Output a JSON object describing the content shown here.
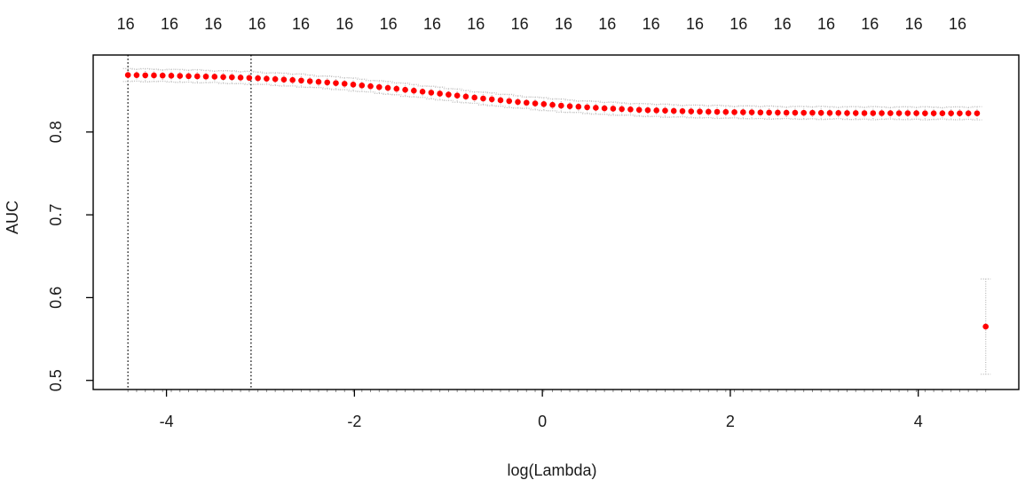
{
  "chart_data": {
    "type": "scatter",
    "title": "",
    "xlabel": "log(Lambda)",
    "ylabel": "AUC",
    "grid": false,
    "legend": "none",
    "x_axis": {
      "range": [
        -4.78,
        5.07
      ],
      "ticks": [
        -4,
        -2,
        0,
        2,
        4
      ]
    },
    "y_axis": {
      "range": [
        0.489,
        0.893
      ],
      "ticks": [
        0.5,
        0.6,
        0.7,
        0.8
      ]
    },
    "top_axis": {
      "x_start": -4.434,
      "x_step": 0.4659,
      "labels": [
        "16",
        "16",
        "16",
        "16",
        "16",
        "16",
        "16",
        "16",
        "16",
        "16",
        "16",
        "16",
        "16",
        "16",
        "16",
        "16",
        "16",
        "16",
        "16",
        "16"
      ]
    },
    "vlines": [
      {
        "name": "lambda-min-line",
        "x": -4.41,
        "style": "dotted"
      },
      {
        "name": "lambda-1se-line",
        "x": -3.1,
        "style": "dotted"
      }
    ],
    "series": {
      "name": "cv-mean-auc",
      "x_start": -4.41,
      "x_step": 0.0922,
      "y": [
        0.8688,
        0.8687,
        0.8685,
        0.8684,
        0.8682,
        0.868,
        0.8678,
        0.8675,
        0.8673,
        0.867,
        0.8668,
        0.8664,
        0.8661,
        0.8657,
        0.8654,
        0.865,
        0.8644,
        0.8639,
        0.8633,
        0.8628,
        0.8622,
        0.8614,
        0.8606,
        0.8599,
        0.8591,
        0.8583,
        0.8573,
        0.8563,
        0.8553,
        0.8543,
        0.8533,
        0.8522,
        0.851,
        0.8499,
        0.8487,
        0.8476,
        0.8464,
        0.8452,
        0.844,
        0.8428,
        0.8416,
        0.8405,
        0.8395,
        0.8384,
        0.8374,
        0.8363,
        0.8354,
        0.8345,
        0.8337,
        0.8328,
        0.8319,
        0.8312,
        0.8306,
        0.8299,
        0.8293,
        0.8286,
        0.8282,
        0.8277,
        0.8273,
        0.8268,
        0.8264,
        0.8261,
        0.8258,
        0.8255,
        0.8252,
        0.8249,
        0.8247,
        0.8245,
        0.8244,
        0.8242,
        0.824,
        0.8239,
        0.8238,
        0.8236,
        0.8235,
        0.8234,
        0.8233,
        0.8233,
        0.8232,
        0.8232,
        0.8231,
        0.823,
        0.823,
        0.8229,
        0.8229,
        0.8228,
        0.8228,
        0.8228,
        0.8227,
        0.8227,
        0.8227,
        0.8227,
        0.8226,
        0.8226,
        0.8226,
        0.8226,
        0.8226,
        0.8226,
        0.8226,
        0.565
      ],
      "se": [
        0.0078,
        0.0072,
        0.008,
        0.0075,
        0.0069,
        0.0077,
        0.0078,
        0.0072,
        0.008,
        0.0075,
        0.0069,
        0.0077,
        0.0078,
        0.0072,
        0.008,
        0.0075,
        0.0069,
        0.0077,
        0.0078,
        0.0072,
        0.008,
        0.0075,
        0.0069,
        0.0077,
        0.0078,
        0.0072,
        0.008,
        0.0075,
        0.0069,
        0.0077,
        0.0078,
        0.0072,
        0.008,
        0.0075,
        0.0069,
        0.0077,
        0.0078,
        0.0072,
        0.008,
        0.0075,
        0.0069,
        0.0077,
        0.0078,
        0.0072,
        0.008,
        0.0075,
        0.0069,
        0.0077,
        0.0078,
        0.0072,
        0.008,
        0.0075,
        0.0069,
        0.0077,
        0.0078,
        0.0072,
        0.008,
        0.0075,
        0.0069,
        0.0077,
        0.0078,
        0.0072,
        0.008,
        0.0075,
        0.0069,
        0.0077,
        0.0078,
        0.0072,
        0.008,
        0.0075,
        0.0069,
        0.0077,
        0.0078,
        0.0072,
        0.008,
        0.0075,
        0.0069,
        0.0077,
        0.0078,
        0.0072,
        0.008,
        0.0075,
        0.0069,
        0.0077,
        0.0078,
        0.0072,
        0.008,
        0.0075,
        0.0069,
        0.0077,
        0.0078,
        0.0072,
        0.008,
        0.0075,
        0.0069,
        0.0077,
        0.0078,
        0.0072,
        0.008,
        0.0575
      ]
    },
    "colors": {
      "point": "#ff0000",
      "errorbar": "#bdbdbd",
      "vline": "#000000",
      "axis": "#000000",
      "minor_tick": "#8a8a8a",
      "background": "#ffffff"
    }
  }
}
